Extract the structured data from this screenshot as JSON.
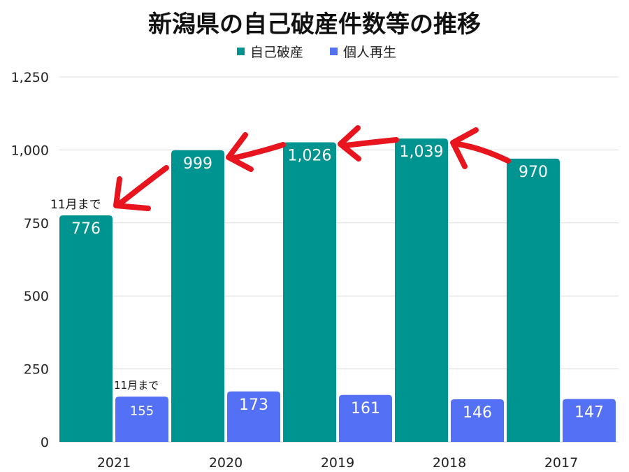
{
  "chart_data": {
    "type": "bar",
    "title": "新潟県の自己破産件数等の推移",
    "categories": [
      "2021",
      "2020",
      "2019",
      "2018",
      "2017"
    ],
    "series": [
      {
        "name": "自己破産",
        "values": [
          776,
          999,
          1026,
          1039,
          970
        ],
        "color": "#009490"
      },
      {
        "name": "個人再生",
        "values": [
          155,
          173,
          161,
          146,
          147
        ],
        "color": "#5470f5"
      }
    ],
    "data_labels": {
      "自己破産": [
        "776",
        "999",
        "1,026",
        "1,039",
        "970"
      ],
      "個人再生": [
        "155",
        "173",
        "161",
        "146",
        "147"
      ]
    },
    "ylim": [
      0,
      1250
    ],
    "yticks": [
      0,
      250,
      500,
      750,
      1000,
      1250
    ],
    "ytick_labels": [
      "0",
      "250",
      "500",
      "750",
      "1,000",
      "1,250"
    ],
    "grid": true,
    "legend_position": "top-center",
    "annotations": [
      {
        "text": "11月まで",
        "target": "自己破産 2021"
      },
      {
        "text": "11月まで",
        "target": "個人再生 2021"
      }
    ],
    "arrow_color": "#e8141e"
  }
}
